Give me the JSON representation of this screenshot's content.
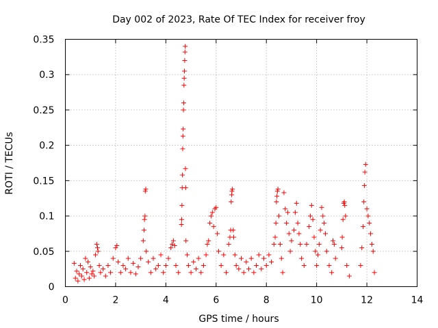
{
  "chart_data": {
    "type": "scatter",
    "title": "Day 002 of 2023, Rate Of TEC Index for receiver froy",
    "xlabel": "GPS time / hours",
    "ylabel": "ROTI / TECUs",
    "xlim": [
      0,
      14
    ],
    "ylim": [
      0,
      0.35
    ],
    "x_ticks": [
      0,
      2,
      4,
      6,
      8,
      10,
      12,
      14
    ],
    "x_tick_labels": [
      "0",
      "2",
      "4",
      "6",
      "8",
      "10",
      "12",
      "14"
    ],
    "y_ticks": [
      0,
      0.05,
      0.1,
      0.15,
      0.2,
      0.25,
      0.3,
      0.35
    ],
    "y_tick_labels": [
      "0",
      "0.05",
      "0.1",
      "0.15",
      "0.2",
      "0.25",
      "0.3",
      "0.35"
    ],
    "grid": true,
    "marker": "+",
    "marker_color": "#ff0000",
    "series": [
      {
        "name": "ROTI",
        "points": [
          [
            0.35,
            0.033
          ],
          [
            0.4,
            0.012
          ],
          [
            0.45,
            0.022
          ],
          [
            0.5,
            0.008
          ],
          [
            0.55,
            0.018
          ],
          [
            0.6,
            0.03
          ],
          [
            0.65,
            0.015
          ],
          [
            0.7,
            0.025
          ],
          [
            0.75,
            0.01
          ],
          [
            0.8,
            0.04
          ],
          [
            0.85,
            0.02
          ],
          [
            0.9,
            0.035
          ],
          [
            0.95,
            0.012
          ],
          [
            1.0,
            0.028
          ],
          [
            1.05,
            0.018
          ],
          [
            1.1,
            0.022
          ],
          [
            1.15,
            0.015
          ],
          [
            1.2,
            0.045
          ],
          [
            1.25,
            0.06
          ],
          [
            1.28,
            0.055
          ],
          [
            1.3,
            0.05
          ],
          [
            1.35,
            0.03
          ],
          [
            1.4,
            0.02
          ],
          [
            1.5,
            0.025
          ],
          [
            1.6,
            0.015
          ],
          [
            1.7,
            0.03
          ],
          [
            1.8,
            0.02
          ],
          [
            1.9,
            0.04
          ],
          [
            2.0,
            0.055
          ],
          [
            2.05,
            0.058
          ],
          [
            2.1,
            0.035
          ],
          [
            2.2,
            0.02
          ],
          [
            2.3,
            0.03
          ],
          [
            2.4,
            0.025
          ],
          [
            2.5,
            0.04
          ],
          [
            2.6,
            0.02
          ],
          [
            2.7,
            0.033
          ],
          [
            2.8,
            0.018
          ],
          [
            2.9,
            0.028
          ],
          [
            3.0,
            0.04
          ],
          [
            3.1,
            0.065
          ],
          [
            3.13,
            0.08
          ],
          [
            3.15,
            0.095
          ],
          [
            3.17,
            0.1
          ],
          [
            3.18,
            0.135
          ],
          [
            3.2,
            0.138
          ],
          [
            3.22,
            0.05
          ],
          [
            3.3,
            0.035
          ],
          [
            3.4,
            0.02
          ],
          [
            3.5,
            0.04
          ],
          [
            3.6,
            0.025
          ],
          [
            3.7,
            0.03
          ],
          [
            3.8,
            0.045
          ],
          [
            3.9,
            0.02
          ],
          [
            4.0,
            0.03
          ],
          [
            4.1,
            0.04
          ],
          [
            4.2,
            0.055
          ],
          [
            4.25,
            0.06
          ],
          [
            4.3,
            0.065
          ],
          [
            4.35,
            0.058
          ],
          [
            4.4,
            0.03
          ],
          [
            4.5,
            0.02
          ],
          [
            4.62,
            0.088
          ],
          [
            4.63,
            0.095
          ],
          [
            4.64,
            0.115
          ],
          [
            4.65,
            0.14
          ],
          [
            4.66,
            0.158
          ],
          [
            4.67,
            0.195
          ],
          [
            4.68,
            0.213
          ],
          [
            4.69,
            0.223
          ],
          [
            4.7,
            0.25
          ],
          [
            4.71,
            0.26
          ],
          [
            4.72,
            0.285
          ],
          [
            4.73,
            0.295
          ],
          [
            4.74,
            0.305
          ],
          [
            4.75,
            0.32
          ],
          [
            4.76,
            0.332
          ],
          [
            4.77,
            0.34
          ],
          [
            4.78,
            0.167
          ],
          [
            4.79,
            0.14
          ],
          [
            4.8,
            0.065
          ],
          [
            4.85,
            0.045
          ],
          [
            4.9,
            0.03
          ],
          [
            5.0,
            0.02
          ],
          [
            5.1,
            0.035
          ],
          [
            5.2,
            0.025
          ],
          [
            5.3,
            0.04
          ],
          [
            5.4,
            0.02
          ],
          [
            5.5,
            0.03
          ],
          [
            5.6,
            0.045
          ],
          [
            5.65,
            0.06
          ],
          [
            5.7,
            0.065
          ],
          [
            5.75,
            0.09
          ],
          [
            5.8,
            0.1
          ],
          [
            5.85,
            0.105
          ],
          [
            5.9,
            0.085
          ],
          [
            5.95,
            0.11
          ],
          [
            6.0,
            0.112
          ],
          [
            6.05,
            0.075
          ],
          [
            6.1,
            0.05
          ],
          [
            6.2,
            0.03
          ],
          [
            6.3,
            0.045
          ],
          [
            6.4,
            0.02
          ],
          [
            6.5,
            0.06
          ],
          [
            6.55,
            0.07
          ],
          [
            6.58,
            0.08
          ],
          [
            6.6,
            0.12
          ],
          [
            6.62,
            0.13
          ],
          [
            6.63,
            0.135
          ],
          [
            6.65,
            0.138
          ],
          [
            6.68,
            0.08
          ],
          [
            6.7,
            0.07
          ],
          [
            6.75,
            0.045
          ],
          [
            6.8,
            0.03
          ],
          [
            6.9,
            0.025
          ],
          [
            7.0,
            0.04
          ],
          [
            7.1,
            0.02
          ],
          [
            7.2,
            0.035
          ],
          [
            7.3,
            0.025
          ],
          [
            7.4,
            0.04
          ],
          [
            7.5,
            0.02
          ],
          [
            7.6,
            0.03
          ],
          [
            7.7,
            0.045
          ],
          [
            7.8,
            0.025
          ],
          [
            7.9,
            0.04
          ],
          [
            8.0,
            0.03
          ],
          [
            8.1,
            0.045
          ],
          [
            8.2,
            0.035
          ],
          [
            8.3,
            0.06
          ],
          [
            8.35,
            0.07
          ],
          [
            8.38,
            0.09
          ],
          [
            8.4,
            0.12
          ],
          [
            8.42,
            0.128
          ],
          [
            8.44,
            0.135
          ],
          [
            8.46,
            0.138
          ],
          [
            8.5,
            0.1
          ],
          [
            8.55,
            0.06
          ],
          [
            8.6,
            0.04
          ],
          [
            8.65,
            0.02
          ],
          [
            8.7,
            0.133
          ],
          [
            8.75,
            0.11
          ],
          [
            8.8,
            0.09
          ],
          [
            8.85,
            0.105
          ],
          [
            8.9,
            0.075
          ],
          [
            8.95,
            0.05
          ],
          [
            9.0,
            0.065
          ],
          [
            9.1,
            0.08
          ],
          [
            9.15,
            0.105
          ],
          [
            9.2,
            0.118
          ],
          [
            9.25,
            0.09
          ],
          [
            9.3,
            0.075
          ],
          [
            9.35,
            0.06
          ],
          [
            9.4,
            0.04
          ],
          [
            9.5,
            0.03
          ],
          [
            9.6,
            0.06
          ],
          [
            9.7,
            0.085
          ],
          [
            9.75,
            0.1
          ],
          [
            9.8,
            0.115
          ],
          [
            9.85,
            0.095
          ],
          [
            9.9,
            0.07
          ],
          [
            9.95,
            0.05
          ],
          [
            10.0,
            0.03
          ],
          [
            10.05,
            0.045
          ],
          [
            10.1,
            0.06
          ],
          [
            10.15,
            0.08
          ],
          [
            10.2,
            0.112
          ],
          [
            10.25,
            0.1
          ],
          [
            10.3,
            0.09
          ],
          [
            10.35,
            0.075
          ],
          [
            10.4,
            0.05
          ],
          [
            10.5,
            0.03
          ],
          [
            10.6,
            0.02
          ],
          [
            10.65,
            0.065
          ],
          [
            10.7,
            0.06
          ],
          [
            10.75,
            0.04
          ],
          [
            11.0,
            0.055
          ],
          [
            11.02,
            0.07
          ],
          [
            11.05,
            0.095
          ],
          [
            11.08,
            0.118
          ],
          [
            11.1,
            0.12
          ],
          [
            11.12,
            0.115
          ],
          [
            11.15,
            0.1
          ],
          [
            11.2,
            0.03
          ],
          [
            11.3,
            0.015
          ],
          [
            11.75,
            0.03
          ],
          [
            11.8,
            0.055
          ],
          [
            11.85,
            0.085
          ],
          [
            11.88,
            0.12
          ],
          [
            11.9,
            0.143
          ],
          [
            11.92,
            0.162
          ],
          [
            11.95,
            0.173
          ],
          [
            12.0,
            0.11
          ],
          [
            12.05,
            0.1
          ],
          [
            12.1,
            0.09
          ],
          [
            12.15,
            0.075
          ],
          [
            12.2,
            0.06
          ],
          [
            12.25,
            0.05
          ],
          [
            12.3,
            0.02
          ]
        ]
      }
    ]
  }
}
